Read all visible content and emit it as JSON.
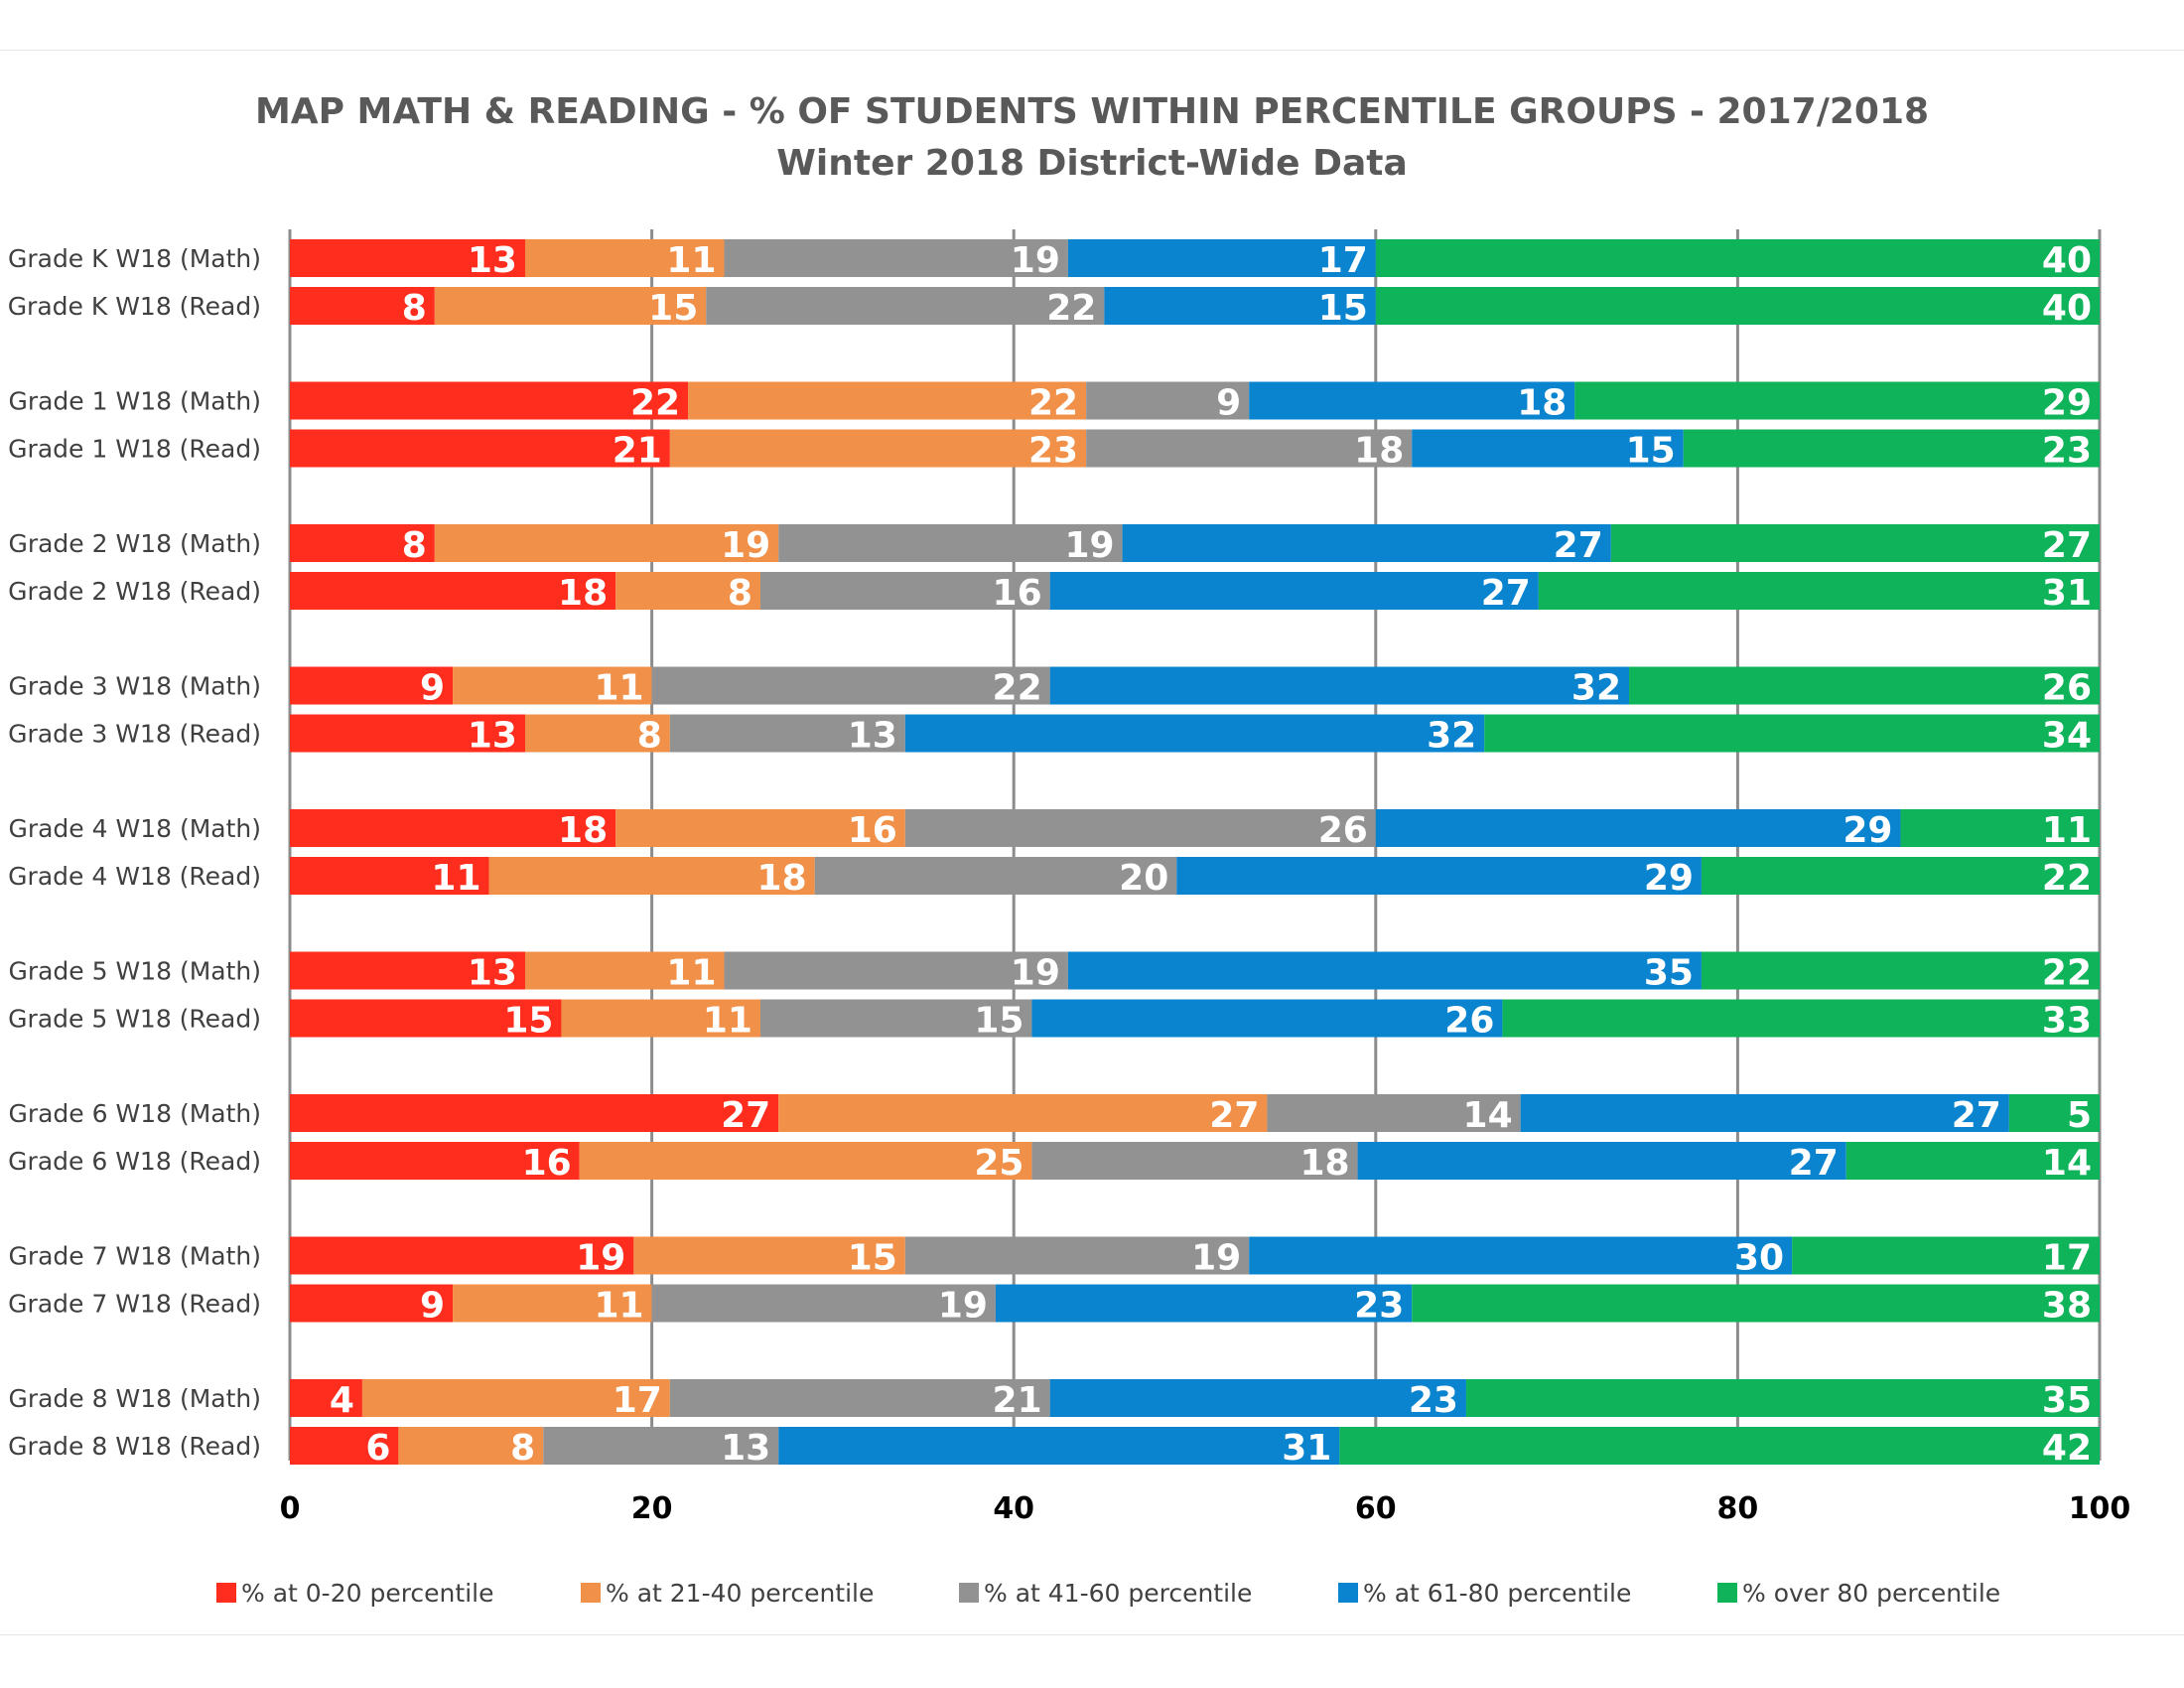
{
  "chart_data": {
    "type": "bar",
    "orientation": "horizontal",
    "stacked": true,
    "title": "MAP MATH & READING - % OF STUDENTS WITHIN PERCENTILE GROUPS - 2017/2018",
    "subtitle": "Winter 2018 District-Wide Data",
    "categories": [
      "Grade K W18 (Math)",
      "Grade K W18 (Read)",
      "Grade 1 W18 (Math)",
      "Grade 1 W18 (Read)",
      "Grade 2 W18 (Math)",
      "Grade 2 W18 (Read)",
      "Grade 3 W18 (Math)",
      "Grade 3 W18 (Read)",
      "Grade 4 W18 (Math)",
      "Grade 4 W18 (Read)",
      "Grade 5 W18 (Math)",
      "Grade 5 W18 (Read)",
      "Grade 6 W18 (Math)",
      "Grade 6 W18 (Read)",
      "Grade 7 W18 (Math)",
      "Grade 7 W18 (Read)",
      "Grade 8 W18 (Math)",
      "Grade 8 W18 (Read)"
    ],
    "series": [
      {
        "name": "% at 0-20 percentile",
        "color": "#fe2d1e",
        "values": [
          13,
          8,
          22,
          21,
          8,
          18,
          9,
          13,
          18,
          11,
          13,
          15,
          27,
          16,
          19,
          9,
          4,
          6
        ]
      },
      {
        "name": "% at 21-40 percentile",
        "color": "#f19049",
        "values": [
          11,
          15,
          22,
          23,
          19,
          8,
          11,
          8,
          16,
          18,
          11,
          11,
          27,
          25,
          15,
          11,
          17,
          8
        ]
      },
      {
        "name": "% at 41-60 percentile",
        "color": "#929292",
        "values": [
          19,
          22,
          9,
          18,
          19,
          16,
          22,
          13,
          26,
          20,
          19,
          15,
          14,
          18,
          19,
          19,
          21,
          13
        ]
      },
      {
        "name": "% at 61-80 percentile",
        "color": "#0a84cf",
        "values": [
          17,
          15,
          18,
          15,
          27,
          27,
          32,
          32,
          29,
          29,
          35,
          26,
          27,
          27,
          30,
          23,
          23,
          31
        ]
      },
      {
        "name": "% over 80 percentile",
        "color": "#0fb35a",
        "values": [
          40,
          40,
          29,
          23,
          27,
          31,
          26,
          34,
          11,
          22,
          22,
          33,
          5,
          14,
          17,
          38,
          35,
          42
        ]
      }
    ],
    "xlim": [
      0,
      100
    ],
    "xticks": [
      0,
      20,
      40,
      60,
      80,
      100
    ],
    "grid": true,
    "legend_position": "bottom",
    "gridline_color": "#8c8c8c"
  }
}
